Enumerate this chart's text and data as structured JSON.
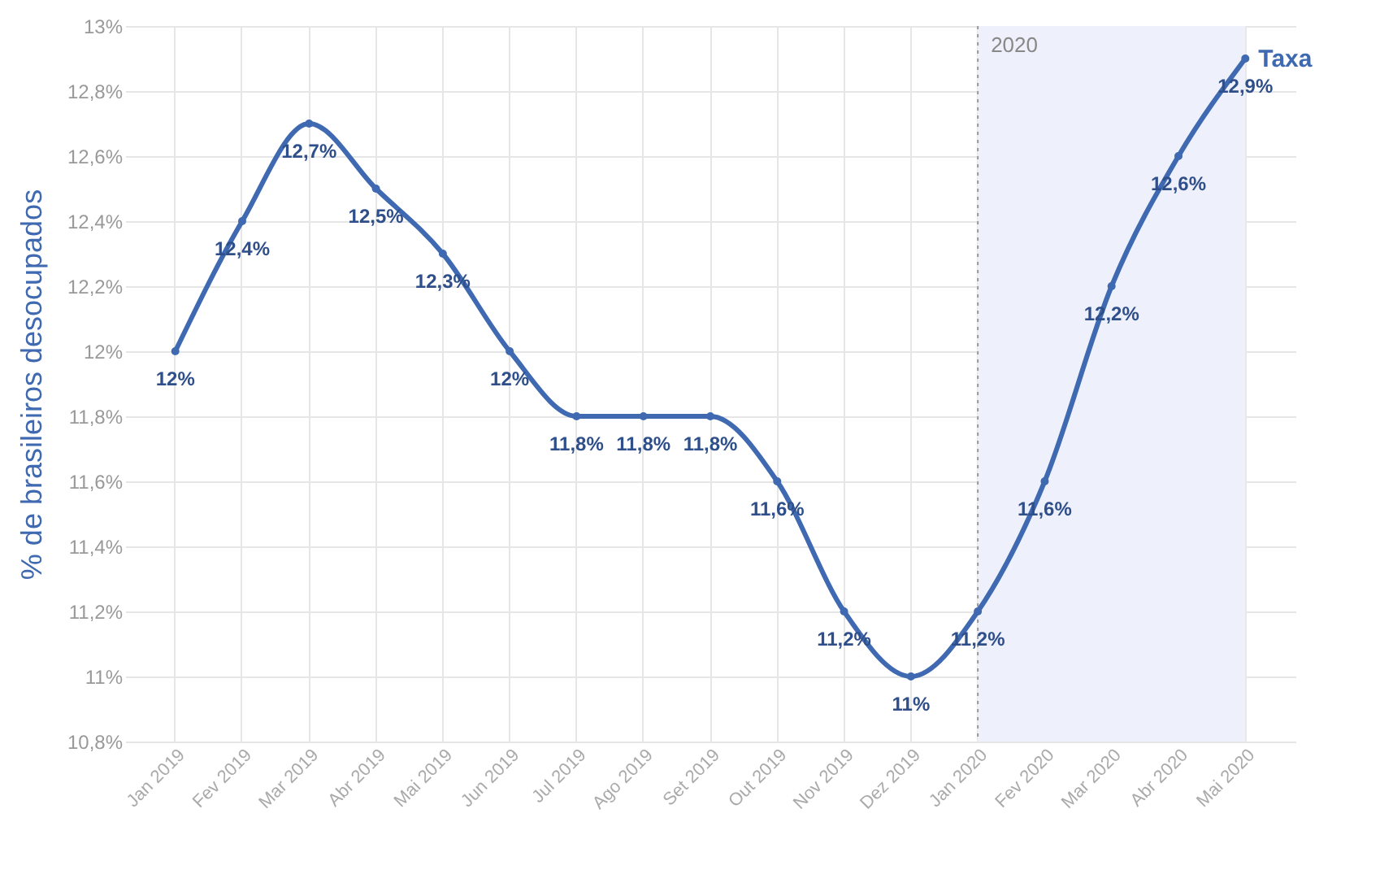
{
  "chart_data": {
    "type": "line",
    "ylabel": "% de brasileiros desocupados",
    "categories": [
      "Jan 2019",
      "Fev 2019",
      "Mar 2019",
      "Abr 2019",
      "Mai 2019",
      "Jun 2019",
      "Jul 2019",
      "Ago 2019",
      "Set 2019",
      "Out 2019",
      "Nov 2019",
      "Dez 2019",
      "Jan 2020",
      "Fev 2020",
      "Mar 2020",
      "Abr 2020",
      "Mai 2020"
    ],
    "series": [
      {
        "name": "Taxa",
        "color": "#3f69b0",
        "values": [
          12,
          12.4,
          12.7,
          12.5,
          12.3,
          12,
          11.8,
          11.8,
          11.8,
          11.6,
          11.2,
          11,
          11.2,
          11.6,
          12.2,
          12.6,
          12.9
        ],
        "value_labels": [
          "12%",
          "12,4%",
          "12,7%",
          "12,5%",
          "12,3%",
          "12%",
          "11,8%",
          "11,8%",
          "11,8%",
          "11,6%",
          "11,2%",
          "11%",
          "11,2%",
          "11,6%",
          "12,2%",
          "12,6%",
          "12,9%"
        ]
      }
    ],
    "ylim": [
      10.8,
      13
    ],
    "yticks": [
      {
        "value": 10.8,
        "label": "10,8%"
      },
      {
        "value": 11,
        "label": "11%"
      },
      {
        "value": 11.2,
        "label": "11,2%"
      },
      {
        "value": 11.4,
        "label": "11,4%"
      },
      {
        "value": 11.6,
        "label": "11,6%"
      },
      {
        "value": 11.8,
        "label": "11,8%"
      },
      {
        "value": 12,
        "label": "12%"
      },
      {
        "value": 12.2,
        "label": "12,2%"
      },
      {
        "value": 12.4,
        "label": "12,4%"
      },
      {
        "value": 12.6,
        "label": "12,6%"
      },
      {
        "value": 12.8,
        "label": "12,8%"
      },
      {
        "value": 13,
        "label": "13%"
      }
    ],
    "bands": [
      {
        "axis": "x",
        "from": "Jan 2020",
        "to": "Mai 2020",
        "label": "2020",
        "color": "#eef0fb"
      }
    ],
    "ref_lines": [
      {
        "axis": "x",
        "value": "Jan 2020",
        "line_style": "dotted",
        "color": "#999999"
      }
    ],
    "grid": true,
    "marker": "circle",
    "line_style": "solid"
  }
}
